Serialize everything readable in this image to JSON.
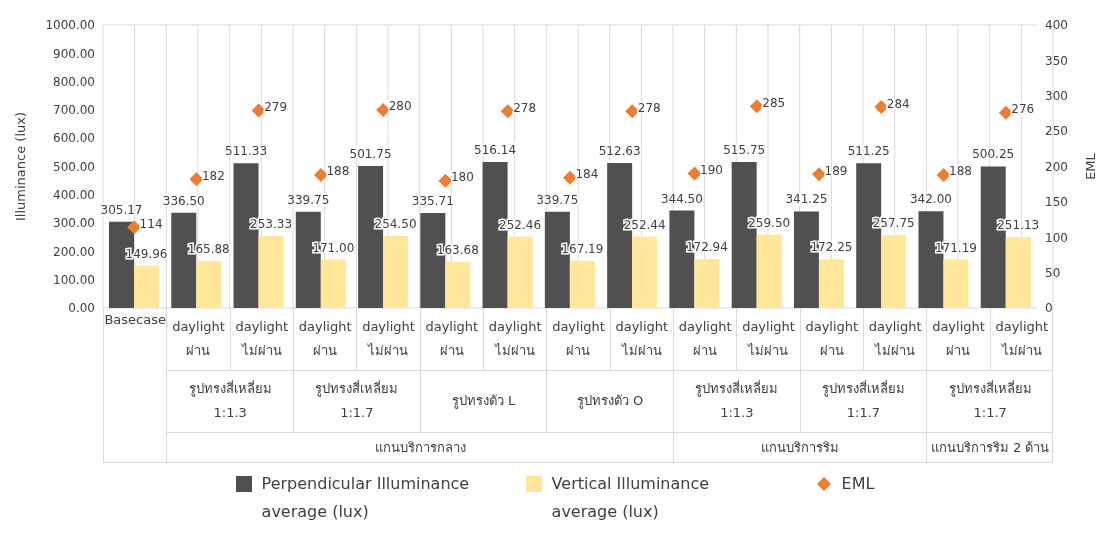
{
  "chart_data": {
    "type": "bar",
    "ylabel": "Illuminance (lux)",
    "y2label": "EML",
    "categories": [
      "Basecase",
      "daylight\nผ่าน",
      "daylight\nไม่ผ่าน",
      "daylight\nผ่าน",
      "daylight\nไม่ผ่าน",
      "daylight\nผ่าน",
      "daylight\nไม่ผ่าน",
      "daylight\nผ่าน",
      "daylight\nไม่ผ่าน",
      "daylight\nผ่าน",
      "daylight\nไม่ผ่าน",
      "daylight\nผ่าน",
      "daylight\nไม่ผ่าน",
      "daylight\nผ่าน",
      "daylight\nไม่ผ่าน"
    ],
    "series": [
      {
        "name": "Perpendicular Illuminance average (lux)",
        "color": "#505050",
        "values": [
          305.17,
          336.5,
          511.33,
          339.75,
          501.75,
          335.71,
          516.14,
          339.75,
          512.63,
          344.5,
          515.75,
          341.25,
          511.25,
          342,
          500.25
        ],
        "value_labels": [
          "305.17",
          "336.50",
          "511.33",
          "339.75",
          "501.75",
          "335.71",
          "516.14",
          "339.75",
          "512.63",
          "344.50",
          "515.75",
          "341.25",
          "511.25",
          "342.00",
          "500.25"
        ]
      },
      {
        "name": "Vertical Illuminance average (lux)",
        "color": "#ffe699",
        "values": [
          149.96,
          165.88,
          253.33,
          171,
          254.5,
          163.68,
          252.46,
          167.19,
          252.44,
          172.94,
          259.5,
          172.25,
          257.75,
          171.19,
          251.13
        ],
        "value_labels": [
          "149.96",
          "165.88",
          "253.33",
          "171.00",
          "254.50",
          "163.68",
          "252.46",
          "167.19",
          "252.44",
          "172.94",
          "259.50",
          "172.25",
          "257.75",
          "171.19",
          "251.13"
        ]
      },
      {
        "name": "EML",
        "type": "scatter",
        "axis": "y2",
        "marker": "diamond",
        "color": "#ed7d31",
        "values": [
          114,
          182,
          279,
          188,
          280,
          180,
          278,
          184,
          278,
          190,
          285,
          189,
          284,
          188,
          276
        ],
        "value_labels": [
          "114",
          "182",
          "279",
          "188",
          "280",
          "180",
          "278",
          "184",
          "278",
          "190",
          "285",
          "189",
          "284",
          "188",
          "276"
        ]
      }
    ],
    "ylim": [
      0,
      1000
    ],
    "yticks": [
      {
        "value": 0,
        "label": "0.00"
      },
      {
        "value": 100,
        "label": "100.00"
      },
      {
        "value": 200,
        "label": "200.00"
      },
      {
        "value": 300,
        "label": "300.00"
      },
      {
        "value": 400,
        "label": "400.00"
      },
      {
        "value": 500,
        "label": "500.00"
      },
      {
        "value": 600,
        "label": "600.00"
      },
      {
        "value": 700,
        "label": "700.00"
      },
      {
        "value": 800,
        "label": "800.00"
      },
      {
        "value": 900,
        "label": "900.00"
      },
      {
        "value": 1000,
        "label": "1000.00"
      }
    ],
    "y2lim": [
      0,
      400
    ],
    "y2ticks": [
      0,
      50,
      100,
      150,
      200,
      250,
      300,
      350,
      400
    ],
    "annotations": [
      "รูปทรงสี่เหลี่ยม\n1:1.3",
      "รูปทรงสี่เหลี่ยม\n1:1.7",
      "รูปทรงตัว L",
      "รูปทรงตัว O",
      "รูปทรงสี่เหลี่ยม\n1:1.3",
      "รูปทรงสี่เหลี่ยม\n1:1.7",
      "รูปทรงสี่เหลี่ยม\n1:1.7",
      "แกนบริการกลาง",
      "แกนบริการริม",
      "แกนบริการริม 2 ด้าน"
    ],
    "grid": true,
    "legend": "bottom"
  }
}
